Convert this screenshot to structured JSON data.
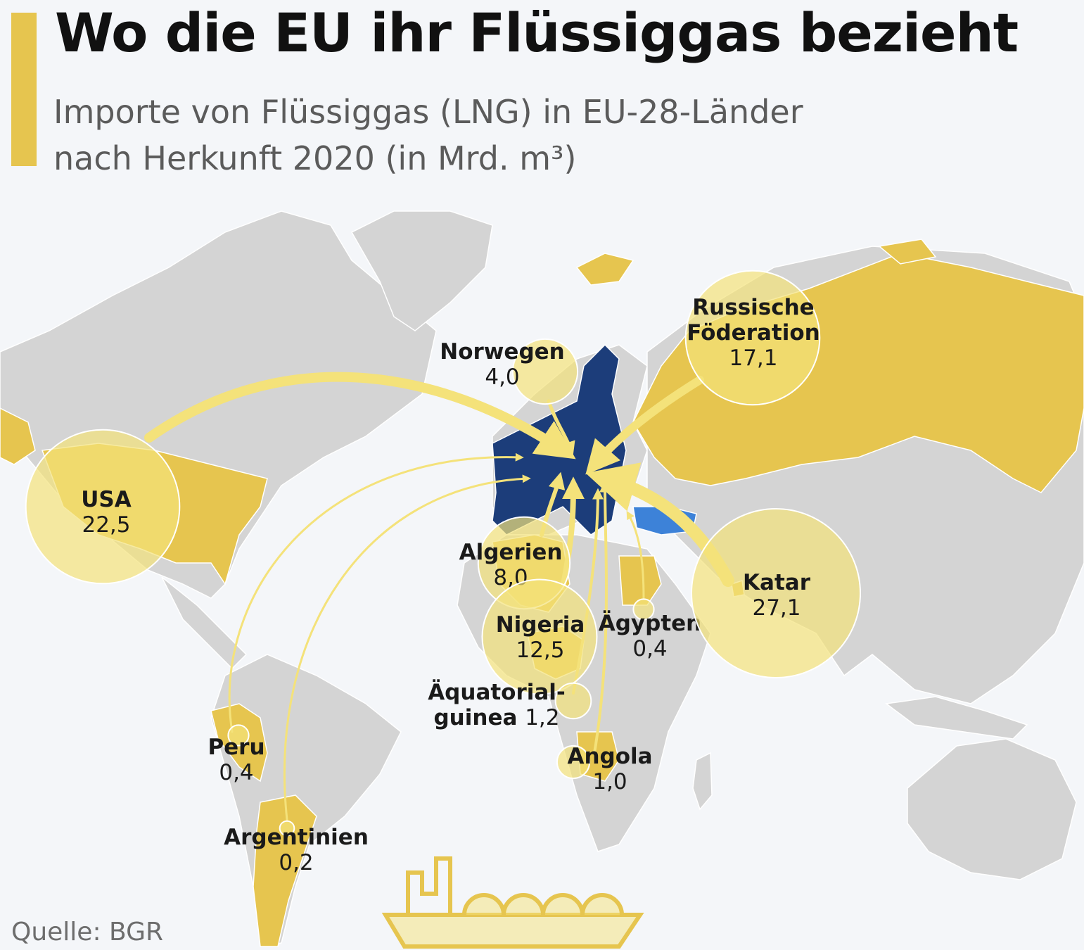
{
  "header": {
    "title": "Wo die EU ihr Flüssiggas bezieht",
    "subtitle_line1": "Importe von Flüssiggas (LNG) in EU-28-Länder",
    "subtitle_line2": "nach Herkunft 2020 (in Mrd. m³)"
  },
  "footer": {
    "source_label": "Quelle:",
    "source_value": "BGR"
  },
  "colors": {
    "background": "#f4f6f9",
    "land": "#d4d4d4",
    "exporter": "#e6c54f",
    "eu": "#1c3d7a",
    "turkey": "#3d82d8",
    "bubble": "#f4e27a",
    "arrow": "#f4e27a"
  },
  "icons": {
    "ship": "lng-tanker-ship-icon"
  },
  "chart_data": {
    "type": "map",
    "title": "Wo die EU ihr Flüssiggas bezieht",
    "subtitle": "Importe von Flüssiggas (LNG) in EU-28-Länder nach Herkunft 2020 (in Mrd. m³)",
    "unit": "Mrd. m³",
    "destination": "EU-28",
    "series": [
      {
        "name": "USA",
        "value": 22.5,
        "label": "22,5"
      },
      {
        "name": "Russische Föderation",
        "value": 17.1,
        "label": "17,1"
      },
      {
        "name": "Norwegen",
        "value": 4.0,
        "label": "4,0"
      },
      {
        "name": "Algerien",
        "value": 8.0,
        "label": "8,0"
      },
      {
        "name": "Nigeria",
        "value": 12.5,
        "label": "12,5"
      },
      {
        "name": "Ägypten",
        "value": 0.4,
        "label": "0,4"
      },
      {
        "name": "Katar",
        "value": 27.1,
        "label": "27,1"
      },
      {
        "name": "Äquatorialguinea",
        "value": 1.2,
        "label": "1,2"
      },
      {
        "name": "Angola",
        "value": 1.0,
        "label": "1,0"
      },
      {
        "name": "Peru",
        "value": 0.4,
        "label": "0,4"
      },
      {
        "name": "Argentinien",
        "value": 0.2,
        "label": "0,2"
      }
    ]
  }
}
